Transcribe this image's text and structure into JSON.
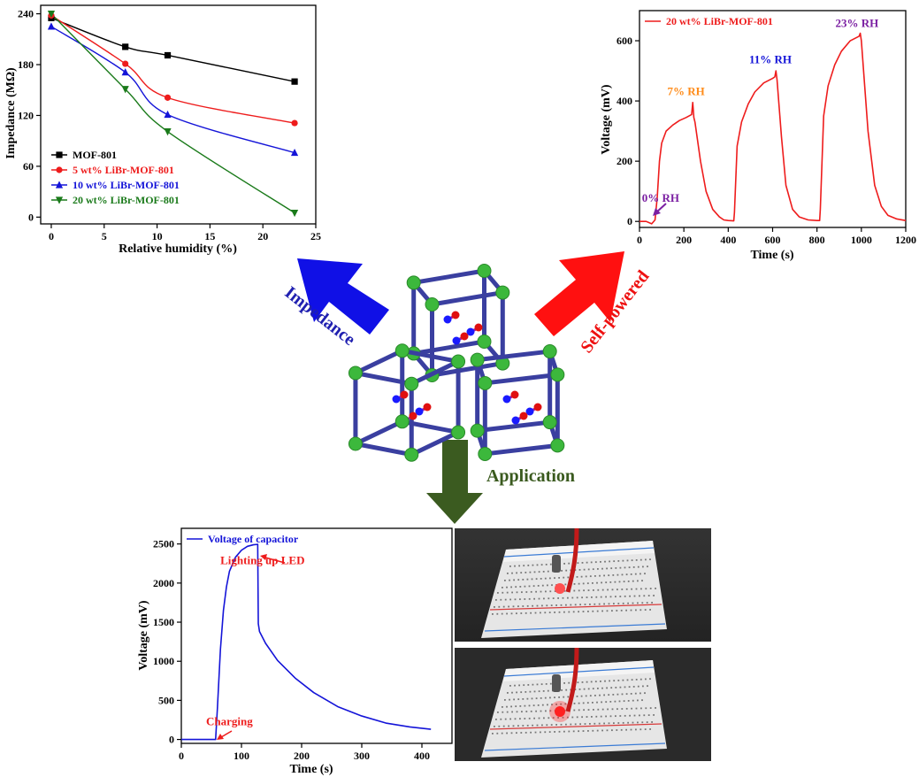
{
  "colors": {
    "black": "#000000",
    "red": "#ee1c1c",
    "blue": "#1414d8",
    "green": "#1a7a1a",
    "olive_arrow": "#3a5a1e",
    "purple": "#7b1fa2",
    "orange": "#ff8c1a",
    "mof_bond": "#3a3fa0",
    "mof_node": "#3cb83c"
  },
  "arrows": {
    "impedance_label": "Impedance",
    "selfpowered_label": "Self-powered",
    "application_label": "Application"
  },
  "chart_data": [
    {
      "id": "impedance",
      "type": "line",
      "title": "",
      "xlabel": "Relative humidity (%)",
      "ylabel": "Impedance (MΩ)",
      "xlim": [
        -1,
        25
      ],
      "ylim": [
        -8,
        250
      ],
      "xticks": [
        "0",
        "5",
        "10",
        "15",
        "20",
        "25"
      ],
      "yticks": [
        "0",
        "60",
        "120",
        "180",
        "240"
      ],
      "legend_position": "bottom-left",
      "series": [
        {
          "name": "MOF-801",
          "color": "#000000",
          "marker": "square",
          "x": [
            0,
            7,
            11,
            23
          ],
          "values": [
            235,
            201,
            191,
            160
          ]
        },
        {
          "name": "5 wt% LiBr-MOF-801",
          "color": "#ee1c1c",
          "marker": "circle",
          "x": [
            0,
            7,
            11,
            23
          ],
          "values": [
            238,
            181,
            141,
            111
          ]
        },
        {
          "name": "10 wt% LiBr-MOF-801",
          "color": "#1414d8",
          "marker": "triangle-up",
          "x": [
            0,
            7,
            11,
            23
          ],
          "values": [
            225,
            171,
            121,
            76
          ]
        },
        {
          "name": "20 wt% LiBr-MOF-801",
          "color": "#1a7a1a",
          "marker": "triangle-down",
          "x": [
            0,
            7,
            11,
            23
          ],
          "values": [
            240,
            151,
            101,
            5
          ]
        }
      ]
    },
    {
      "id": "selfpowered",
      "type": "line",
      "title": "",
      "xlabel": "Time (s)",
      "ylabel": "Voltage (mV)",
      "xlim": [
        0,
        1200
      ],
      "ylim": [
        -20,
        700
      ],
      "xticks": [
        "0",
        "200",
        "400",
        "600",
        "800",
        "1000",
        "1200"
      ],
      "yticks": [
        "0",
        "200",
        "400",
        "600"
      ],
      "legend_position": "top-left",
      "series": [
        {
          "name": "20 wt% LiBr-MOF-801",
          "color": "#ee1c1c",
          "x": [
            0,
            30,
            55,
            70,
            80,
            90,
            100,
            120,
            150,
            180,
            210,
            235,
            240,
            245,
            250,
            275,
            300,
            330,
            360,
            380,
            400,
            425,
            428,
            440,
            460,
            490,
            520,
            560,
            600,
            610,
            615,
            620,
            640,
            660,
            690,
            720,
            760,
            800,
            812,
            815,
            830,
            850,
            880,
            910,
            950,
            990,
            995,
            1000,
            1030,
            1060,
            1090,
            1120,
            1160,
            1200
          ],
          "values": [
            0,
            0,
            -8,
            5,
            80,
            200,
            260,
            300,
            320,
            335,
            345,
            355,
            395,
            345,
            330,
            200,
            100,
            40,
            15,
            5,
            3,
            2,
            30,
            250,
            330,
            390,
            430,
            460,
            475,
            480,
            500,
            470,
            280,
            120,
            40,
            15,
            5,
            3,
            3,
            40,
            350,
            450,
            520,
            565,
            600,
            615,
            625,
            600,
            300,
            120,
            50,
            20,
            8,
            3
          ]
        }
      ],
      "annotations": [
        {
          "text": "0% RH",
          "x": 95,
          "y": 65,
          "color": "#7b1fa2"
        },
        {
          "text": "7% RH",
          "x": 210,
          "y": 420,
          "color": "#ff8c1a"
        },
        {
          "text": "11% RH",
          "x": 590,
          "y": 525,
          "color": "#1414d8"
        },
        {
          "text": "23% RH",
          "x": 980,
          "y": 645,
          "color": "#7b1fa2"
        }
      ]
    },
    {
      "id": "capacitor",
      "type": "line",
      "title": "",
      "xlabel": "Time (s)",
      "ylabel": "Voltage (mV)",
      "xlim": [
        0,
        450
      ],
      "ylim": [
        -50,
        2700
      ],
      "xticks": [
        "0",
        "100",
        "200",
        "300",
        "400"
      ],
      "yticks": [
        "0",
        "500",
        "1000",
        "1500",
        "2000",
        "2500"
      ],
      "legend_position": "top-left",
      "series": [
        {
          "name": "Voltage of capacitor",
          "color": "#1414d8",
          "x": [
            0,
            57,
            60,
            65,
            70,
            75,
            80,
            90,
            100,
            110,
            120,
            127,
            128,
            130,
            140,
            160,
            190,
            220,
            260,
            300,
            340,
            380,
            415
          ],
          "values": [
            0,
            0,
            400,
            1150,
            1650,
            1950,
            2150,
            2330,
            2420,
            2470,
            2490,
            2495,
            1480,
            1380,
            1230,
            1010,
            780,
            600,
            420,
            300,
            210,
            160,
            130
          ]
        }
      ],
      "annotations": [
        {
          "text": "Lighting up LED",
          "x": 135,
          "y": 2240,
          "color": "#ee1c1c"
        },
        {
          "text": "Charging",
          "x": 80,
          "y": 180,
          "color": "#ee1c1c"
        }
      ]
    }
  ]
}
